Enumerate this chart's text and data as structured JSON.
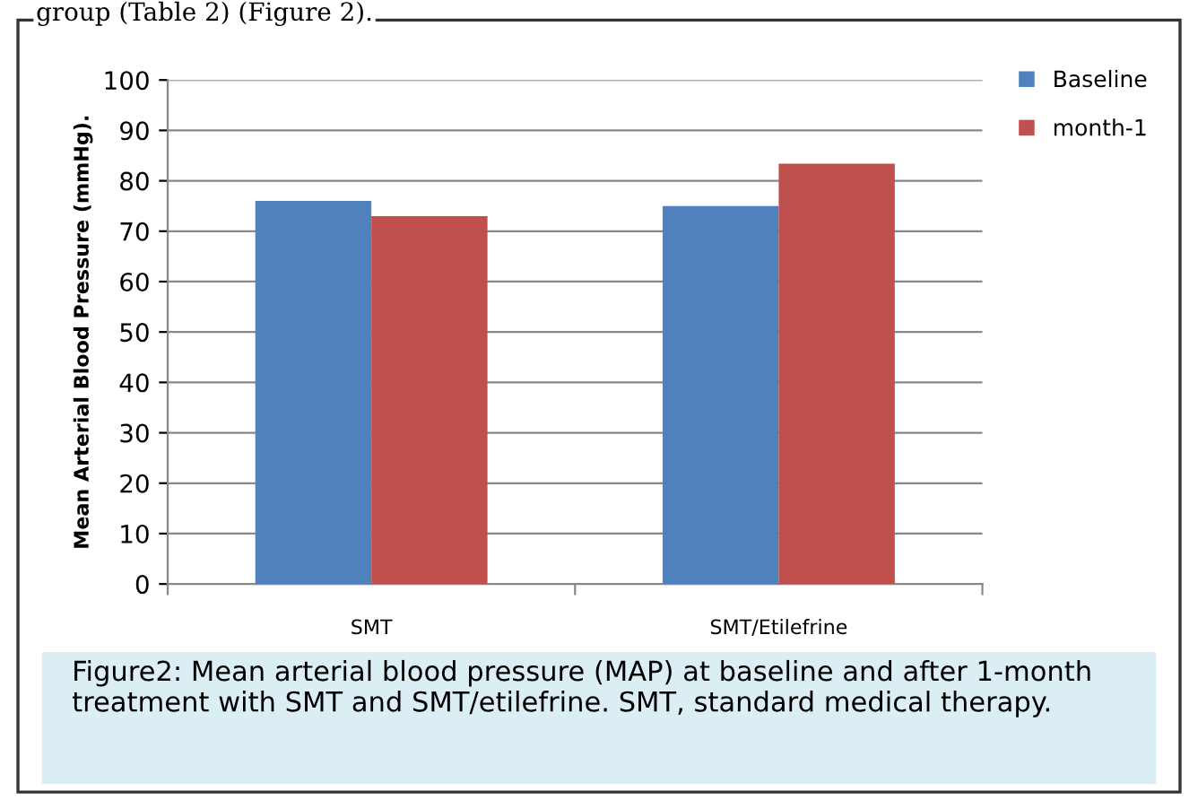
{
  "chart_data": {
    "type": "bar",
    "ylabel": "Mean Arterial Blood Pressure (mmHg).",
    "categories": [
      "SMT",
      "SMT/Etilefrine"
    ],
    "series": [
      {
        "name": "Baseline",
        "color": "#4f81bd",
        "values": [
          76,
          75
        ]
      },
      {
        "name": "month-1",
        "color": "#c0504d",
        "values": [
          73,
          83.4
        ]
      }
    ],
    "ylim": [
      0,
      100
    ],
    "yticks": [
      0,
      10,
      20,
      30,
      40,
      50,
      60,
      70,
      80,
      90,
      100
    ],
    "grid": "y",
    "legend": "top right",
    "annotations": [
      "group (Table 2) (Figure 2).",
      "Figure2: Mean arterial blood pressure (MAP) at baseline and after 1-month treatment with SMT and SMT/etilefrine. SMT, standard medical therapy."
    ]
  }
}
